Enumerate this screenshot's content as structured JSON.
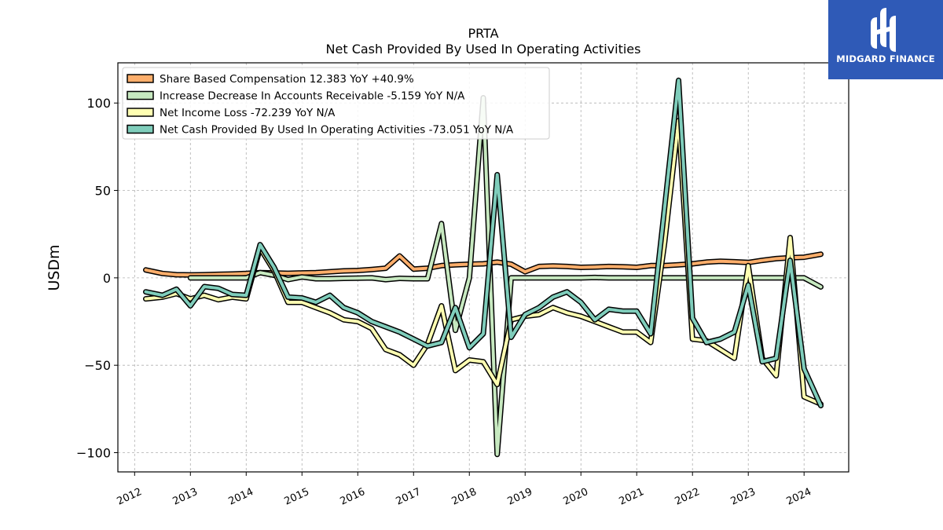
{
  "logo": {
    "name": "MIDGARD FINANCE",
    "mark": "midgard-logo-icon"
  },
  "chart_data": {
    "type": "line",
    "title": "PRTA",
    "subtitle": "Net Cash Provided By Used In Operating Activities",
    "xlabel": "",
    "ylabel": "USDm",
    "xlim": [
      2011.7,
      2024.8
    ],
    "ylim": [
      -111,
      123
    ],
    "yticks": [
      -100,
      -50,
      0,
      50,
      100
    ],
    "ytick_labels": [
      "−100",
      "−50",
      "0",
      "50",
      "100"
    ],
    "xticks": [
      2012,
      2013,
      2014,
      2015,
      2016,
      2017,
      2018,
      2019,
      2020,
      2021,
      2022,
      2023,
      2024
    ],
    "xtick_labels": [
      "2012",
      "2013",
      "2014",
      "2015",
      "2016",
      "2017",
      "2018",
      "2019",
      "2020",
      "2021",
      "2022",
      "2023",
      "2024"
    ],
    "grid": true,
    "legend_position": "top-left",
    "series": [
      {
        "name": "Share Based Compensation",
        "legend": "Share Based Compensation  12.383 YoY +40.9%",
        "color": "#fdae6b",
        "x": [
          2012.2,
          2012.5,
          2012.75,
          2013.0,
          2013.25,
          2013.5,
          2013.75,
          2014.0,
          2014.25,
          2014.5,
          2014.75,
          2015.0,
          2015.25,
          2015.5,
          2015.75,
          2016.0,
          2016.25,
          2016.5,
          2016.75,
          2017.0,
          2017.25,
          2017.5,
          2017.75,
          2018.0,
          2018.25,
          2018.5,
          2018.75,
          2019.0,
          2019.25,
          2019.5,
          2019.75,
          2020.0,
          2020.25,
          2020.5,
          2020.75,
          2021.0,
          2021.25,
          2021.5,
          2021.75,
          2022.0,
          2022.25,
          2022.5,
          2022.75,
          2023.0,
          2023.25,
          2023.5,
          2023.75,
          2024.0,
          2024.3
        ],
        "y": [
          4.5,
          2.5,
          1.8,
          1.7,
          1.8,
          2.0,
          2.2,
          2.5,
          3.0,
          2.8,
          2.6,
          2.8,
          3.0,
          3.5,
          4.0,
          4.2,
          4.8,
          5.5,
          12.5,
          5.0,
          5.5,
          7.0,
          7.5,
          7.8,
          8.0,
          9.0,
          7.8,
          3.5,
          6.5,
          6.8,
          6.5,
          6.0,
          6.2,
          6.5,
          6.3,
          6.0,
          7.0,
          7.0,
          7.5,
          8.0,
          9.0,
          9.5,
          9.2,
          8.8,
          10.0,
          11.0,
          11.5,
          11.8,
          13.5
        ]
      },
      {
        "name": "Increase Decrease In Accounts Receivable",
        "legend": "Increase Decrease In Accounts Receivable  -5.159 YoY N/A",
        "color": "#c7e9c0",
        "x": [
          2013.0,
          2013.25,
          2013.5,
          2013.75,
          2014.0,
          2014.25,
          2014.5,
          2014.75,
          2015.0,
          2015.25,
          2015.5,
          2015.75,
          2016.0,
          2016.25,
          2016.5,
          2016.75,
          2017.0,
          2017.25,
          2017.5,
          2017.75,
          2018.0,
          2018.25,
          2018.5,
          2018.75,
          2019.0,
          2019.25,
          2019.5,
          2019.75,
          2020.0,
          2020.25,
          2020.5,
          2020.75,
          2021.0,
          2021.25,
          2021.5,
          2021.75,
          2022.0,
          2022.25,
          2022.5,
          2022.75,
          2023.0,
          2023.25,
          2023.5,
          2023.75,
          2024.0,
          2024.3
        ],
        "y": [
          0,
          0,
          0,
          0,
          0,
          3.0,
          1.5,
          -1.0,
          0.5,
          -0.5,
          -0.5,
          -0.3,
          -0.2,
          0,
          -1.0,
          -0.3,
          -0.5,
          -0.5,
          31,
          -30,
          0,
          103,
          -101,
          0,
          0,
          0,
          0,
          0,
          0,
          0.2,
          0,
          0,
          0,
          0,
          0,
          0,
          0,
          0,
          0,
          0,
          0,
          0,
          0,
          0,
          0,
          -5.2
        ]
      },
      {
        "name": "Net Income Loss",
        "legend": "Net Income Loss  -72.239 YoY N/A",
        "color": "#ffffb2",
        "x": [
          2012.2,
          2012.5,
          2012.75,
          2013.0,
          2013.25,
          2013.5,
          2013.75,
          2014.0,
          2014.25,
          2014.5,
          2014.75,
          2015.0,
          2015.25,
          2015.5,
          2015.75,
          2016.0,
          2016.25,
          2016.5,
          2016.75,
          2017.0,
          2017.25,
          2017.5,
          2017.75,
          2018.0,
          2018.25,
          2018.5,
          2018.75,
          2019.0,
          2019.25,
          2019.5,
          2019.75,
          2020.0,
          2020.25,
          2020.5,
          2020.75,
          2021.0,
          2021.25,
          2021.5,
          2021.75,
          2022.0,
          2022.25,
          2022.5,
          2022.75,
          2023.0,
          2023.25,
          2023.5,
          2023.75,
          2024.0,
          2024.3
        ],
        "y": [
          -12,
          -11,
          -9,
          -12,
          -10,
          -12.5,
          -11,
          -12,
          17,
          4,
          -14,
          -14,
          -17,
          -20,
          -24,
          -25,
          -29,
          -41,
          -44,
          -50,
          -38,
          -16,
          -53,
          -47,
          -48,
          -61,
          -24,
          -22,
          -21,
          -17,
          -20,
          -22,
          -25,
          -28,
          -31,
          -31,
          -37,
          20,
          90,
          -35,
          -36,
          -41,
          -46,
          7,
          -46,
          -56,
          23,
          -68,
          -72.2
        ]
      },
      {
        "name": "Net Cash Provided By Used In Operating Activities",
        "legend": "Net Cash Provided By Used In Operating Activities  -73.051 YoY N/A",
        "color": "#7fcdbb",
        "x": [
          2012.2,
          2012.5,
          2012.75,
          2013.0,
          2013.25,
          2013.5,
          2013.75,
          2014.0,
          2014.25,
          2014.5,
          2014.75,
          2015.0,
          2015.25,
          2015.5,
          2015.75,
          2016.0,
          2016.25,
          2016.5,
          2016.75,
          2017.0,
          2017.25,
          2017.5,
          2017.75,
          2018.0,
          2018.25,
          2018.5,
          2018.75,
          2019.0,
          2019.25,
          2019.5,
          2019.75,
          2020.0,
          2020.25,
          2020.5,
          2020.75,
          2021.0,
          2021.25,
          2021.5,
          2021.75,
          2022.0,
          2022.25,
          2022.5,
          2022.75,
          2023.0,
          2023.25,
          2023.5,
          2023.75,
          2024.0,
          2024.3
        ],
        "y": [
          -8,
          -10,
          -6.5,
          -16,
          -5,
          -6,
          -9.5,
          -10,
          19,
          6,
          -11,
          -11.5,
          -14,
          -10,
          -17,
          -20,
          -25,
          -28,
          -31,
          -35,
          -39,
          -37,
          -17,
          -40,
          -32,
          59,
          -34,
          -21,
          -17,
          -11,
          -8,
          -14,
          -24,
          -18,
          -19,
          -19,
          -32,
          40,
          113,
          -23,
          -37,
          -35,
          -31,
          -4,
          -48,
          -46,
          10,
          -52,
          -73.1
        ]
      }
    ]
  }
}
